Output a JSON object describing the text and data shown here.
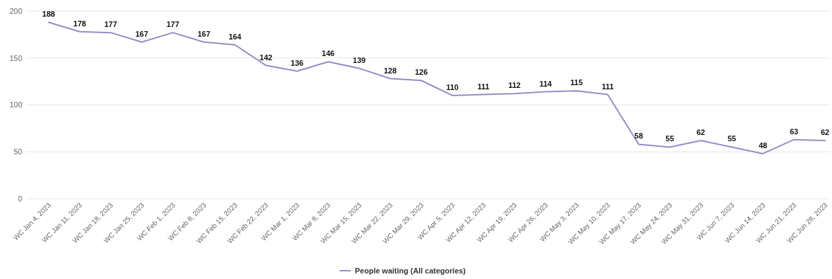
{
  "chart_data": {
    "type": "line",
    "categories": [
      "WC Jan 4, 2023",
      "WC Jan 11, 2023",
      "WC Jan 18, 2023",
      "WC Jan 25, 2023",
      "WC Feb 1, 2023",
      "WC Feb 8, 2023",
      "WC Feb 15, 2023",
      "WC Feb 22, 2023",
      "WC Mar 1, 2023",
      "WC Mar 8, 2023",
      "WC Mar 15, 2023",
      "WC Mar 22, 2023",
      "WC Mar 29, 2023",
      "WC Apr 5, 2023",
      "WC Apr 12, 2023",
      "WC Apr 19, 2023",
      "WC Apr 26, 2023",
      "WC May 3, 2023",
      "WC May 10, 2023",
      "WC May 17, 2023",
      "WC May 24, 2023",
      "WC May 31, 2023",
      "WC Jun 7, 2023",
      "WC Jun 14, 2023",
      "WC Jun 21, 2023",
      "WC Jun 28, 2023"
    ],
    "series": [
      {
        "name": "People waiting (All categories)",
        "color": "#9b89c6",
        "values": [
          188,
          178,
          177,
          167,
          177,
          167,
          164,
          142,
          136,
          146,
          139,
          128,
          126,
          110,
          111,
          112,
          114,
          115,
          111,
          58,
          55,
          62,
          55,
          48,
          63,
          62
        ]
      }
    ],
    "ylim": [
      0,
      200
    ],
    "yticks": [
      0,
      50,
      100,
      150,
      200
    ],
    "grid": "y",
    "legend": "bottom",
    "marker": "none",
    "line_style": "solid",
    "data_labels": true
  }
}
